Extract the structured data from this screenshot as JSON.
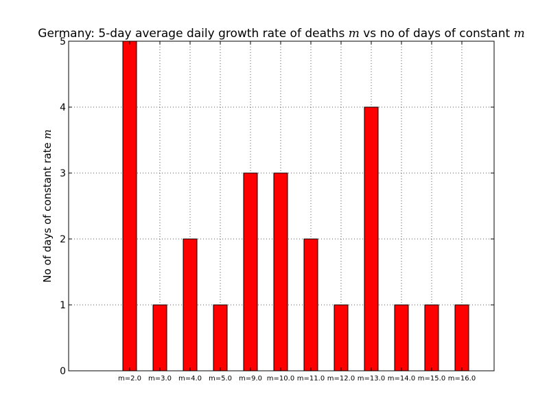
{
  "chart_data": {
    "type": "bar",
    "title": "Germany: 5-day average daily growth rate of deaths m vs no of days of constant m",
    "title_parts": {
      "prefix": "Germany: 5-day average daily growth rate of deaths ",
      "var1": "m",
      "middle": " vs no of days of constant ",
      "var2": "m"
    },
    "xlabel": "",
    "ylabel": "No of days of constant rate m",
    "ylabel_parts": {
      "text": "No of days of constant rate ",
      "var": "m"
    },
    "categories": [
      "m=2.0",
      "m=3.0",
      "m=4.0",
      "m=5.0",
      "m=9.0",
      "m=10.0",
      "m=11.0",
      "m=12.0",
      "m=13.0",
      "m=14.0",
      "m=15.0",
      "m=16.0"
    ],
    "values": [
      5,
      1,
      2,
      1,
      3,
      3,
      2,
      1,
      4,
      1,
      1,
      1
    ],
    "ylim": [
      0,
      5
    ],
    "yticks": [
      "0",
      "1",
      "2",
      "3",
      "4",
      "5"
    ],
    "grid": true,
    "colors": {
      "bar": "#ff0000",
      "edge": "#000000",
      "grid": "#555555"
    }
  }
}
